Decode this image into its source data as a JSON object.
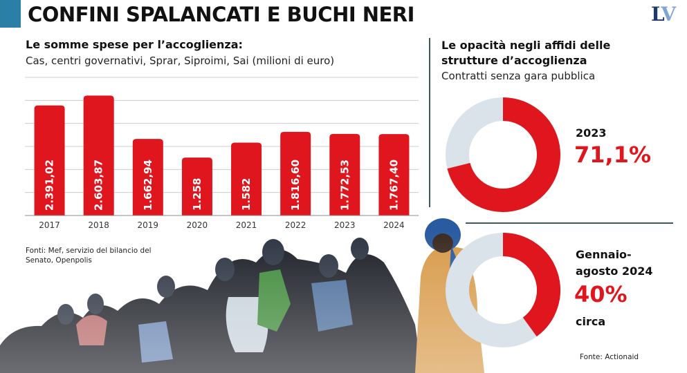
{
  "header": {
    "title": "CONFINI SPALANCATI E BUCHI NERI",
    "logo_part1": "L",
    "logo_part2": "V"
  },
  "colors": {
    "accent": "#e0161e",
    "donut_rest": "#dbe3ea",
    "title_block": "#2a7fa6",
    "grid": "#cccccc"
  },
  "left_panel": {
    "subtitle_bold": "Le somme spese per l’accoglienza:",
    "subtitle": "Cas, centri governativi, Sprar, Siproimi, Sai (milioni di euro)",
    "source": "Fonti: Mef, servizio del bilancio del Senato, Openpolis"
  },
  "right_panel": {
    "title": "Le opacità negli affidi delle strutture d’accoglienza",
    "subtitle": "Contratti senza gara pubblica",
    "donut1": {
      "label": "2023",
      "value_text": "71,1%"
    },
    "donut2": {
      "label": "Gennaio-agosto 2024",
      "value_text": "40%",
      "note": "circa"
    },
    "source": "Fonte: Actionaid"
  },
  "chart_data": [
    {
      "type": "bar",
      "title": "Le somme spese per l’accoglienza:",
      "subtitle": "Cas, centri governativi, Sprar, Siproimi, Sai (milioni di euro)",
      "categories": [
        "2017",
        "2018",
        "2019",
        "2020",
        "2021",
        "2022",
        "2023",
        "2024"
      ],
      "values": [
        2391.02,
        2603.87,
        1662.94,
        1258,
        1582,
        1816.6,
        1772.53,
        1767.4
      ],
      "value_labels": [
        "2.391,02",
        "2.603,87",
        "1.662,94",
        "1.258",
        "1.582",
        "1.816,60",
        "1.772,53",
        "1.767,40"
      ],
      "ylim": [
        0,
        3000
      ],
      "grid": true
    },
    {
      "type": "pie",
      "title": "Le opacità negli affidi delle strutture d’accoglienza",
      "categories": [
        "2023"
      ],
      "values": [
        71.1
      ]
    },
    {
      "type": "pie",
      "categories": [
        "Gennaio-agosto 2024"
      ],
      "values": [
        40
      ]
    }
  ]
}
